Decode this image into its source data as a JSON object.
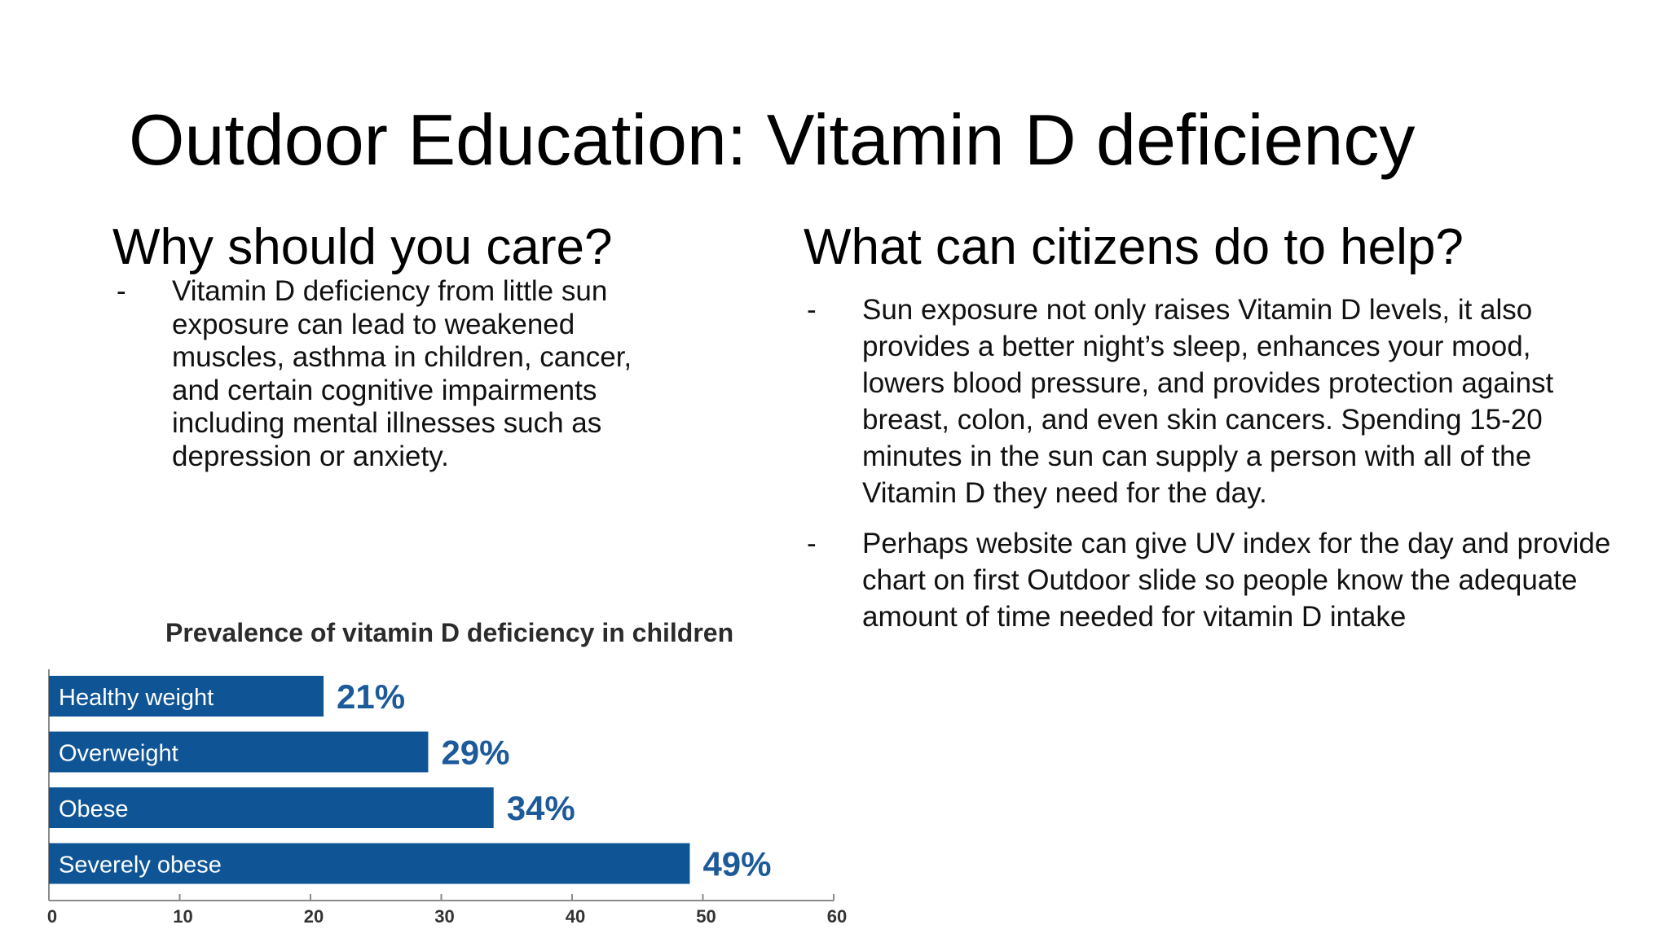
{
  "slide": {
    "title": "Outdoor Education: Vitamin D deficiency",
    "left": {
      "heading": "Why should you care?",
      "bullets": [
        "Vitamin D deficiency from little sun exposure can lead to weakened muscles, asthma in children, cancer, and certain cognitive impairments including mental illnesses such as depression or anxiety."
      ]
    },
    "right": {
      "heading": "What can citizens do to help?",
      "bullets": [
        "Sun exposure not only raises Vitamin D levels, it also provides a better night’s sleep, enhances your mood, lowers blood pressure, and provides protection against breast, colon, and even skin cancers. Spending 15-20 minutes in the sun can supply a person with all of the Vitamin D they need for the day.",
        "Perhaps website can give UV index for the day and provide chart on first Outdoor slide so people know the adequate amount of time needed for vitamin D intake"
      ]
    },
    "bullet_marker": "-"
  },
  "chart_data": {
    "type": "bar",
    "orientation": "horizontal",
    "title": "Prevalence of vitamin D deficiency in children",
    "categories": [
      "Healthy weight",
      "Overweight",
      "Obese",
      "Severely obese"
    ],
    "values": [
      21,
      29,
      34,
      49
    ],
    "value_labels": [
      "21%",
      "29%",
      "34%",
      "49%"
    ],
    "xlim": [
      0,
      60
    ],
    "xticks": [
      "0",
      "10",
      "20",
      "30",
      "40",
      "50",
      "60"
    ],
    "xlabel": "",
    "ylabel": "",
    "grid": false,
    "colors": {
      "bar": "#0f5596",
      "label": "#1c5a9a",
      "bar_text": "#ffffff",
      "axis": "#8a8a8a",
      "title": "#2b2b2b"
    }
  }
}
